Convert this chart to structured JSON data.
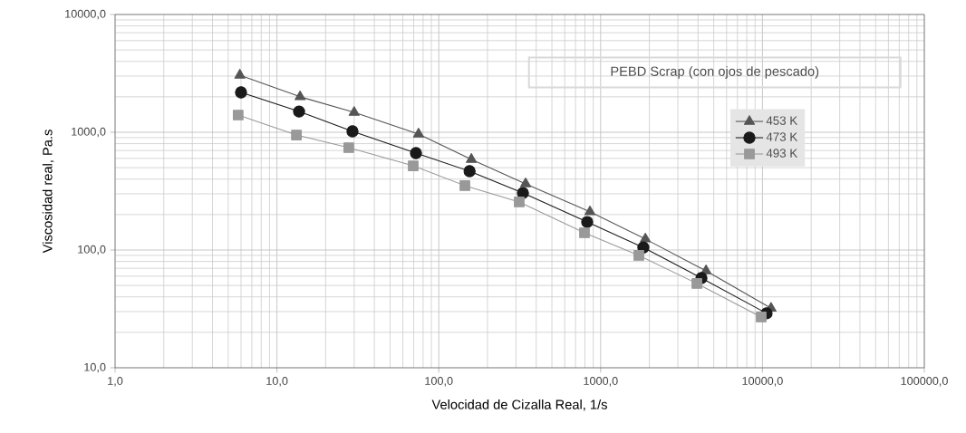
{
  "chart_data": {
    "type": "line",
    "xlabel": "Velocidad de Cizalla Real, 1/s",
    "ylabel": "Viscosidad real, Pa.s",
    "annotations": [
      "PEBD Scrap (con ojos de pescado)"
    ],
    "log": "xy",
    "grid": true,
    "legend": "top right",
    "xlim": [
      1,
      100000
    ],
    "ylim": [
      10,
      10000
    ],
    "xticks": [
      {
        "value": 1,
        "label": "1,0"
      },
      {
        "value": 10,
        "label": "10,0"
      },
      {
        "value": 100,
        "label": "100,0"
      },
      {
        "value": 1000,
        "label": "1000,0"
      },
      {
        "value": 10000,
        "label": "10000,0"
      },
      {
        "value": 100000,
        "label": "100000,0"
      }
    ],
    "yticks": [
      {
        "value": 10,
        "label": "10,0"
      },
      {
        "value": 100,
        "label": "100,0"
      },
      {
        "value": 1000,
        "label": "1000,0"
      },
      {
        "value": 10000,
        "label": "10000,0"
      }
    ],
    "series": [
      {
        "name": "453 K",
        "color": "#555555",
        "marker": "triangle",
        "x": [
          5.9,
          13.9,
          30,
          75,
          159,
          344,
          859,
          1890,
          4480,
          11300
        ],
        "values": [
          3050,
          2000,
          1475,
          965,
          588,
          365,
          211,
          124,
          66.5,
          32
        ]
      },
      {
        "name": "473 K",
        "color": "#1a1a1a",
        "marker": "circle",
        "x": [
          6,
          13.7,
          29.3,
          72.3,
          155,
          331,
          826,
          1837,
          4195,
          10600
        ],
        "values": [
          2180,
          1500,
          1018,
          665,
          467,
          305,
          173,
          105,
          57.8,
          29
        ]
      },
      {
        "name": "493 K",
        "color": "#999999",
        "marker": "square",
        "x": [
          5.76,
          13.2,
          27.8,
          69.5,
          145,
          314,
          795,
          1722,
          3933,
          9820
        ],
        "values": [
          1400,
          948,
          740,
          519,
          352,
          256,
          140,
          90,
          52,
          27
        ]
      }
    ]
  }
}
